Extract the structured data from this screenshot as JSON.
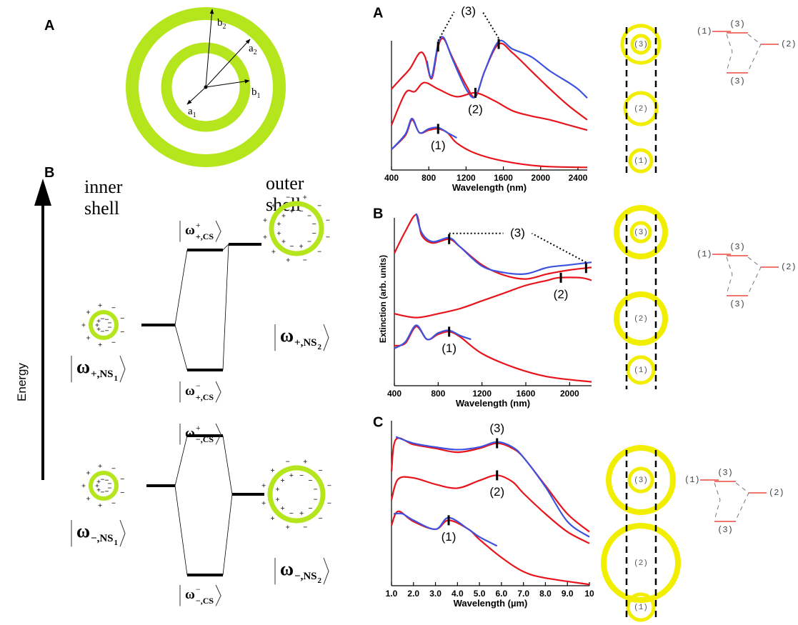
{
  "figure_left": {
    "panel_a": {
      "label": "A",
      "vectors": [
        {
          "base": "a",
          "sub": "1"
        },
        {
          "base": "a",
          "sub": "2"
        },
        {
          "base": "b",
          "sub": "1"
        },
        {
          "base": "b",
          "sub": "2"
        }
      ]
    },
    "panel_b": {
      "label": "B",
      "inner_shell": [
        "inner",
        "shell"
      ],
      "outer_shell": [
        "outer",
        "shell"
      ],
      "axis_label": "Energy",
      "kets": [
        {
          "base": "ω",
          "sub": "+,NS",
          "subsub": "1"
        },
        {
          "base": "ω",
          "sup": "+",
          "sub": "+,CS"
        },
        {
          "base": "ω",
          "sup": "−",
          "sub": "+,CS"
        },
        {
          "base": "ω",
          "sub": "+,NS",
          "subsub": "2"
        },
        {
          "base": "ω",
          "sup": "+",
          "sub": "−,CS"
        },
        {
          "base": "ω",
          "sub": "−,NS",
          "subsub": "1"
        },
        {
          "base": "ω",
          "sup": "−",
          "sub": "−,CS"
        },
        {
          "base": "ω",
          "sub": "−,NS",
          "subsub": "2"
        }
      ]
    }
  },
  "chart_data": [
    {
      "type": "line",
      "label": "A",
      "x_label": "Wavelength (nm)",
      "xlim": [
        400,
        2500
      ],
      "xticks": [
        400,
        800,
        1200,
        1600,
        2000,
        2400
      ],
      "ylim": [
        0,
        10.5
      ],
      "series": [
        {
          "color": "#e8141c",
          "x": [
            400,
            500,
            600,
            700,
            760,
            830,
            900,
            960,
            1050,
            1200,
            1300,
            1400,
            1550,
            1700,
            1900,
            2100,
            2300,
            2500
          ],
          "values": [
            6.3,
            7.1,
            7.9,
            9.1,
            8.8,
            7.1,
            9.6,
            10.2,
            8.8,
            6.6,
            5.7,
            7.7,
            9.8,
            9.1,
            7.7,
            6.3,
            5.0,
            3.9
          ]
        },
        {
          "color": "#3d53e0",
          "x": [
            780,
            830,
            900,
            960,
            1050,
            1200,
            1300,
            1400,
            1550,
            1700,
            1900,
            2100,
            2300,
            2400,
            2500
          ],
          "values": [
            8.5,
            7.2,
            9.8,
            10.3,
            8.7,
            6.3,
            5.7,
            7.7,
            10.0,
            9.4,
            8.8,
            7.7,
            6.8,
            6.3,
            5.6
          ]
        },
        {
          "color": "#e8141c",
          "x": [
            400,
            550,
            650,
            750,
            900,
            1100,
            1300,
            1500,
            1700,
            1900,
            2100,
            2300,
            2500
          ],
          "values": [
            3.5,
            6.0,
            6.1,
            6.8,
            6.3,
            5.7,
            6.0,
            5.4,
            4.6,
            4.2,
            3.9,
            3.5,
            3.1
          ]
        },
        {
          "color": "#e8141c",
          "x": [
            400,
            550,
            620,
            700,
            800,
            900,
            1000,
            1100,
            1300,
            1600,
            2000,
            2500
          ],
          "values": [
            1.6,
            2.7,
            3.9,
            2.9,
            3.1,
            3.2,
            2.9,
            2.1,
            1.3,
            0.7,
            0.3,
            0.2
          ]
        },
        {
          "color": "#3d53e0",
          "x": [
            400,
            550,
            620,
            700,
            800,
            900,
            1000,
            1100
          ],
          "values": [
            1.6,
            2.8,
            4.0,
            2.9,
            3.2,
            3.3,
            2.9,
            2.5
          ]
        }
      ],
      "annotations": [
        {
          "text": "(3)",
          "x": [
            900,
            1550
          ]
        },
        {
          "text": "(2)",
          "x": [
            1300
          ]
        },
        {
          "text": "(1)",
          "x": [
            900
          ]
        }
      ]
    },
    {
      "type": "line",
      "label": "B",
      "x_label": "Wavelength (nm)",
      "y_label": "Extinction (arb. units)",
      "xlim": [
        400,
        2200
      ],
      "xticks": [
        400,
        800,
        1200,
        1600,
        2000
      ],
      "ylim": [
        0,
        13.5
      ],
      "series": [
        {
          "color": "#e8141c",
          "x": [
            400,
            500,
            600,
            650,
            750,
            900,
            1000,
            1200,
            1400,
            1600,
            1800,
            2000,
            2200
          ],
          "values": [
            10.3,
            12.0,
            13.3,
            11.7,
            11.1,
            11.4,
            10.8,
            9.4,
            8.6,
            8.3,
            8.7,
            9.0,
            9.2
          ]
        },
        {
          "color": "#3d53e0",
          "x": [
            600,
            650,
            750,
            900,
            1000,
            1200,
            1400,
            1600,
            1800,
            2000,
            2200
          ],
          "values": [
            13.4,
            11.9,
            11.2,
            11.5,
            10.8,
            9.3,
            8.8,
            8.7,
            9.2,
            9.4,
            9.6
          ]
        },
        {
          "color": "#e8141c",
          "x": [
            400,
            600,
            800,
            1000,
            1200,
            1400,
            1600,
            1800,
            1900,
            2100,
            2200
          ],
          "values": [
            5.6,
            5.3,
            5.6,
            6.0,
            6.6,
            7.2,
            7.8,
            8.2,
            8.4,
            8.4,
            8.2
          ]
        },
        {
          "color": "#e8141c",
          "x": [
            400,
            500,
            600,
            700,
            800,
            900,
            1000,
            1200,
            1500,
            1800,
            2200
          ],
          "values": [
            3.1,
            3.3,
            4.6,
            3.6,
            4.0,
            4.2,
            3.8,
            2.5,
            1.4,
            0.7,
            0.3
          ]
        },
        {
          "color": "#3d53e0",
          "x": [
            400,
            500,
            600,
            700,
            800,
            900,
            1000,
            1100
          ],
          "values": [
            2.9,
            3.4,
            4.7,
            3.6,
            4.1,
            4.3,
            3.9,
            3.6
          ]
        }
      ],
      "annotations": [
        {
          "text": "(3)",
          "x": [
            900,
            2150
          ]
        },
        {
          "text": "(2)",
          "x": [
            1920
          ]
        },
        {
          "text": "(1)",
          "x": [
            900
          ]
        }
      ]
    },
    {
      "type": "line",
      "label": "C",
      "x_label": "Wavelength (µm)",
      "xlim": [
        1,
        10
      ],
      "xticks": [
        {
          "value": 1,
          "label": "1.0"
        },
        {
          "value": 2,
          "label": "2.0"
        },
        {
          "value": 3,
          "label": "3.0"
        },
        {
          "value": 4,
          "label": "4.0"
        },
        {
          "value": 5,
          "label": "5.0"
        },
        {
          "value": 6,
          "label": "6.0"
        },
        {
          "value": 7,
          "label": "7.0"
        },
        {
          "value": 8,
          "label": "8.0"
        },
        {
          "value": 9,
          "label": "9.0"
        },
        10
      ],
      "ylim": [
        0,
        13.3
      ],
      "series": [
        {
          "color": "#e8141c",
          "x": [
            1.0,
            1.2,
            2,
            3,
            4,
            5,
            5.8,
            6.5,
            7,
            8,
            9,
            10
          ],
          "values": [
            8.9,
            11.4,
            11.0,
            10.7,
            10.4,
            10.7,
            11.1,
            10.7,
            10.0,
            7.8,
            5.6,
            4.2
          ]
        },
        {
          "color": "#3d53e0",
          "x": [
            1.2,
            2,
            3,
            4,
            5,
            5.8,
            6.5,
            7,
            8,
            9,
            10
          ],
          "values": [
            11.6,
            11.1,
            10.8,
            10.6,
            10.8,
            11.2,
            10.8,
            10.0,
            7.7,
            5.0,
            3.8
          ]
        },
        {
          "color": "#e8141c",
          "x": [
            1.0,
            1.3,
            2,
            3,
            4,
            5,
            5.8,
            6.5,
            7,
            8,
            9,
            10
          ],
          "values": [
            6.7,
            8.3,
            8.4,
            7.9,
            7.6,
            8.2,
            8.6,
            8.1,
            7.2,
            5.6,
            4.2,
            3.3
          ]
        },
        {
          "color": "#e8141c",
          "x": [
            1.0,
            1.3,
            2,
            3,
            3.6,
            4.5,
            5,
            6,
            7,
            8,
            10
          ],
          "values": [
            4.7,
            5.8,
            5.0,
            4.4,
            5.1,
            4.4,
            3.6,
            2.2,
            1.1,
            0.6,
            0.1
          ]
        },
        {
          "color": "#3d53e0",
          "x": [
            1.1,
            1.5,
            2,
            3,
            3.6,
            4.5,
            5,
            5.8
          ],
          "values": [
            5.6,
            5.6,
            5.1,
            4.4,
            5.3,
            4.4,
            3.8,
            3.1
          ]
        }
      ],
      "annotations": [
        {
          "text": "(3)",
          "x": [
            5.8
          ]
        },
        {
          "text": "(2)",
          "x": [
            5.8
          ]
        },
        {
          "text": "(1)",
          "x": [
            3.6
          ]
        }
      ]
    }
  ],
  "right_diagrams": [
    {
      "circle_labels": [
        "(3)",
        "(2)",
        "(1)"
      ],
      "level_labels": [
        "(1)",
        "(3)",
        "(2)",
        "(3)"
      ]
    },
    {
      "circle_labels": [
        "(3)",
        "(2)",
        "(1)"
      ],
      "level_labels": [
        "(1)",
        "(3)",
        "(2)",
        "(3)"
      ]
    },
    {
      "circle_labels": [
        "(3)",
        "(2)",
        "(1)"
      ],
      "level_labels": [
        "(1)",
        "(3)",
        "(2)",
        "(3)"
      ]
    }
  ]
}
